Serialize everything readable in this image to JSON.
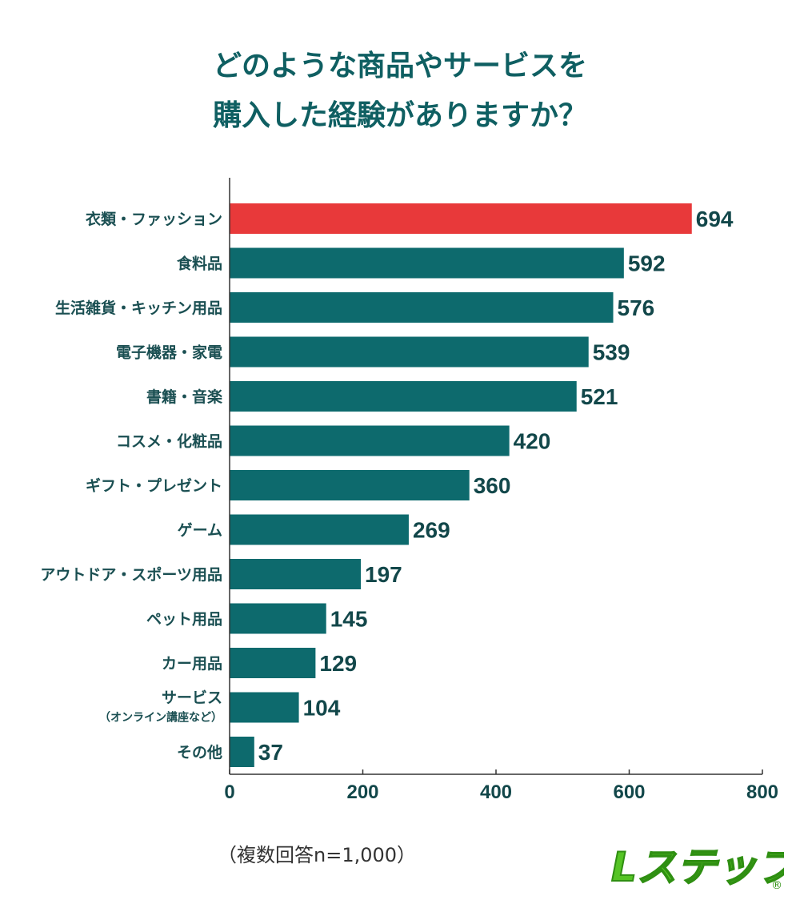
{
  "title_lines": [
    "どのような商品やサービスを",
    "購入した経験がありますか？"
  ],
  "note": "（複数回答n=1,000）",
  "logo": {
    "text": "Lステップ",
    "mark": "®",
    "color": "#55c425"
  },
  "colors": {
    "highlight": "#e8393a",
    "bar": "#0d6a6d",
    "axis": "#333333"
  },
  "chart_data": {
    "type": "bar",
    "orientation": "horizontal",
    "categories": [
      [
        "衣類・ファッション"
      ],
      [
        "食料品"
      ],
      [
        "生活雑貨・キッチン用品"
      ],
      [
        "電子機器・家電"
      ],
      [
        "書籍・音楽"
      ],
      [
        "コスメ・化粧品"
      ],
      [
        "ギフト・プレゼント"
      ],
      [
        "ゲーム"
      ],
      [
        "アウトドア・スポーツ用品"
      ],
      [
        "ペット用品"
      ],
      [
        "カー用品"
      ],
      [
        "サービス",
        "（オンライン講座など）"
      ],
      [
        "その他"
      ]
    ],
    "values": [
      694,
      592,
      576,
      539,
      521,
      420,
      360,
      269,
      197,
      145,
      129,
      104,
      37
    ],
    "highlight_index": 0,
    "xlim": [
      0,
      800
    ],
    "xticks": [
      "0",
      "200",
      "400",
      "600",
      "800"
    ],
    "grid": false
  }
}
